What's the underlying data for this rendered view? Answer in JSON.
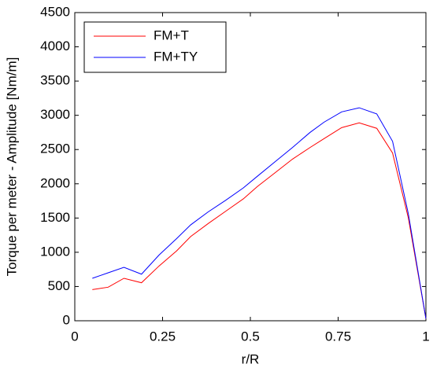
{
  "chart_data": {
    "type": "line",
    "xlabel": "r/R",
    "ylabel": "Torque per meter - Amplitude [Nm/m]",
    "x": [
      0.05,
      0.095,
      0.14,
      0.19,
      0.24,
      0.29,
      0.33,
      0.38,
      0.43,
      0.48,
      0.52,
      0.57,
      0.62,
      0.67,
      0.71,
      0.76,
      0.81,
      0.86,
      0.905,
      0.95,
      1.0
    ],
    "series": [
      {
        "name": "FM+T",
        "color": "#ff0000",
        "values": [
          455,
          490,
          620,
          555,
          800,
          1020,
          1230,
          1420,
          1600,
          1780,
          1960,
          2160,
          2360,
          2530,
          2660,
          2820,
          2890,
          2810,
          2450,
          1500,
          30
        ]
      },
      {
        "name": "FM+TY",
        "color": "#0000ff",
        "values": [
          620,
          700,
          780,
          680,
          960,
          1200,
          1400,
          1590,
          1760,
          1940,
          2110,
          2320,
          2530,
          2750,
          2900,
          3050,
          3110,
          3020,
          2620,
          1560,
          30
        ]
      }
    ],
    "xlim": [
      0,
      1
    ],
    "xticks": [
      0,
      0.25,
      0.5,
      0.75,
      1
    ],
    "ylim": [
      0,
      4500
    ],
    "yticks": [
      0,
      500,
      1000,
      1500,
      2000,
      2500,
      3000,
      3500,
      4000,
      4500
    ],
    "legend": "upper left"
  }
}
